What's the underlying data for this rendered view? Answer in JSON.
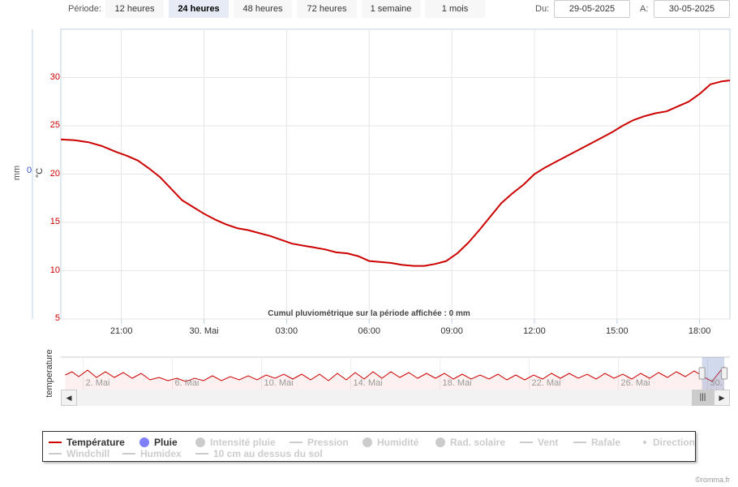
{
  "toolbar": {
    "period_label": "Période:",
    "periods": [
      "12 heures",
      "24 heures",
      "48 heures",
      "72 heures",
      "1 semaine",
      "1 mois"
    ],
    "active_period": 1,
    "from_label": "Du:",
    "from_value": "29-05-2025",
    "to_label": "A:",
    "to_value": "30-05-2025"
  },
  "chart_data": [
    {
      "type": "line",
      "title": "",
      "xlabel": "",
      "ylabel": "°C",
      "y2label": "mm",
      "y2_ticks": [
        "0"
      ],
      "ylim": [
        5,
        35
      ],
      "y_ticks": [
        "5",
        "10",
        "15",
        "20",
        "25",
        "30"
      ],
      "x_ticks": [
        {
          "label": "21:00",
          "h": 3
        },
        {
          "label": "30. Mai",
          "h": 6
        },
        {
          "label": "03:00",
          "h": 9
        },
        {
          "label": "06:00",
          "h": 12
        },
        {
          "label": "09:00",
          "h": 15
        },
        {
          "label": "12:00",
          "h": 18
        },
        {
          "label": "15:00",
          "h": 21
        },
        {
          "label": "18:00",
          "h": 24
        }
      ],
      "x_unit": "hours since 29-05-2025 18:00",
      "xlim": [
        0.8,
        25.1
      ],
      "annotation": "Cumul pluviométrique sur la période affichée : 0 mm",
      "series": [
        {
          "name": "Température",
          "color": "#cc0000",
          "points": [
            [
              0.8,
              23.6
            ],
            [
              1.3,
              23.5
            ],
            [
              1.8,
              23.3
            ],
            [
              2.3,
              22.9
            ],
            [
              2.8,
              22.3
            ],
            [
              3.2,
              21.9
            ],
            [
              3.6,
              21.4
            ],
            [
              4.0,
              20.6
            ],
            [
              4.4,
              19.7
            ],
            [
              4.8,
              18.5
            ],
            [
              5.2,
              17.3
            ],
            [
              5.6,
              16.6
            ],
            [
              6.0,
              15.9
            ],
            [
              6.4,
              15.3
            ],
            [
              6.8,
              14.8
            ],
            [
              7.2,
              14.4
            ],
            [
              7.6,
              14.2
            ],
            [
              8.0,
              13.9
            ],
            [
              8.4,
              13.6
            ],
            [
              8.8,
              13.2
            ],
            [
              9.2,
              12.8
            ],
            [
              9.6,
              12.6
            ],
            [
              10.0,
              12.4
            ],
            [
              10.4,
              12.2
            ],
            [
              10.8,
              11.9
            ],
            [
              11.2,
              11.8
            ],
            [
              11.6,
              11.5
            ],
            [
              12.0,
              11.0
            ],
            [
              12.4,
              10.9
            ],
            [
              12.8,
              10.8
            ],
            [
              13.2,
              10.6
            ],
            [
              13.6,
              10.5
            ],
            [
              14.0,
              10.5
            ],
            [
              14.4,
              10.7
            ],
            [
              14.8,
              11.0
            ],
            [
              15.2,
              11.8
            ],
            [
              15.6,
              12.9
            ],
            [
              16.0,
              14.2
            ],
            [
              16.4,
              15.6
            ],
            [
              16.8,
              17.0
            ],
            [
              17.2,
              18.0
            ],
            [
              17.6,
              18.9
            ],
            [
              18.0,
              20.0
            ],
            [
              18.4,
              20.7
            ],
            [
              18.8,
              21.3
            ],
            [
              19.2,
              21.9
            ],
            [
              19.6,
              22.5
            ],
            [
              20.0,
              23.1
            ],
            [
              20.4,
              23.7
            ],
            [
              20.8,
              24.3
            ],
            [
              21.2,
              25.0
            ],
            [
              21.6,
              25.6
            ],
            [
              22.0,
              26.0
            ],
            [
              22.4,
              26.3
            ],
            [
              22.8,
              26.5
            ],
            [
              23.2,
              27.0
            ],
            [
              23.6,
              27.5
            ],
            [
              24.0,
              28.3
            ],
            [
              24.4,
              29.3
            ],
            [
              24.8,
              29.6
            ],
            [
              25.1,
              29.7
            ]
          ]
        }
      ]
    },
    {
      "type": "line",
      "title": "",
      "ylabel": "temperature",
      "x_ticks": [
        {
          "label": "2. Mai",
          "d": 2
        },
        {
          "label": "6. Mai",
          "d": 6
        },
        {
          "label": "10. Mai",
          "d": 10
        },
        {
          "label": "14. Mai",
          "d": 14
        },
        {
          "label": "18. Mai",
          "d": 18
        },
        {
          "label": "22. Mai",
          "d": 22
        },
        {
          "label": "26. Mai",
          "d": 26
        },
        {
          "label": "30. Mai",
          "d": 30
        }
      ],
      "x_unit": "day of May 2025",
      "xlim": [
        1,
        31
      ],
      "ylim": [
        0,
        40
      ],
      "selected_range": [
        29.75,
        30.75
      ],
      "series": [
        {
          "name": "Température",
          "color": "#cc0000",
          "points": [
            [
              1.2,
              18
            ],
            [
              1.5,
              22
            ],
            [
              1.8,
              16
            ],
            [
              2.2,
              24
            ],
            [
              2.6,
              15
            ],
            [
              3.0,
              22
            ],
            [
              3.4,
              15
            ],
            [
              3.8,
              21
            ],
            [
              4.2,
              14
            ],
            [
              4.6,
              20
            ],
            [
              5.0,
              12
            ],
            [
              5.4,
              15
            ],
            [
              5.8,
              11
            ],
            [
              6.2,
              14
            ],
            [
              6.6,
              10
            ],
            [
              7.0,
              14
            ],
            [
              7.4,
              11
            ],
            [
              7.8,
              17
            ],
            [
              8.2,
              11
            ],
            [
              8.6,
              16
            ],
            [
              9.0,
              12
            ],
            [
              9.4,
              17
            ],
            [
              9.8,
              12
            ],
            [
              10.2,
              18
            ],
            [
              10.6,
              14
            ],
            [
              11.0,
              19
            ],
            [
              11.4,
              13
            ],
            [
              11.8,
              19
            ],
            [
              12.2,
              12
            ],
            [
              12.6,
              19
            ],
            [
              13.0,
              11
            ],
            [
              13.4,
              20
            ],
            [
              13.8,
              12
            ],
            [
              14.2,
              21
            ],
            [
              14.6,
              13
            ],
            [
              15.0,
              22
            ],
            [
              15.4,
              14
            ],
            [
              15.8,
              22
            ],
            [
              16.2,
              15
            ],
            [
              16.6,
              21
            ],
            [
              17.0,
              14
            ],
            [
              17.4,
              20
            ],
            [
              17.8,
              14
            ],
            [
              18.2,
              20
            ],
            [
              18.6,
              13
            ],
            [
              19.0,
              19
            ],
            [
              19.4,
              13
            ],
            [
              19.8,
              18
            ],
            [
              20.2,
              13
            ],
            [
              20.6,
              19
            ],
            [
              21.0,
              12
            ],
            [
              21.4,
              18
            ],
            [
              21.8,
              12
            ],
            [
              22.2,
              18
            ],
            [
              22.6,
              13
            ],
            [
              23.0,
              20
            ],
            [
              23.4,
              14
            ],
            [
              23.8,
              20
            ],
            [
              24.2,
              14
            ],
            [
              24.6,
              19
            ],
            [
              25.0,
              13
            ],
            [
              25.4,
              20
            ],
            [
              25.8,
              14
            ],
            [
              26.2,
              19
            ],
            [
              26.6,
              13
            ],
            [
              27.0,
              20
            ],
            [
              27.4,
              14
            ],
            [
              27.8,
              21
            ],
            [
              28.2,
              15
            ],
            [
              28.6,
              22
            ],
            [
              29.0,
              16
            ],
            [
              29.4,
              23
            ],
            [
              29.8,
              16
            ],
            [
              30.2,
              10
            ],
            [
              30.6,
              24
            ],
            [
              30.75,
              28
            ]
          ]
        }
      ]
    }
  ],
  "legend": [
    {
      "label": "Température",
      "symbol": "line",
      "color": "#cc0000",
      "hidden": false
    },
    {
      "label": "Pluie",
      "symbol": "dot",
      "color": "#8080ff",
      "hidden": false
    },
    {
      "label": "Intensité pluie",
      "symbol": "dot",
      "color": "#cccccc",
      "hidden": true
    },
    {
      "label": "Pression",
      "symbol": "line",
      "color": "#cccccc",
      "hidden": true
    },
    {
      "label": "Humidité",
      "symbol": "dot",
      "color": "#cccccc",
      "hidden": true
    },
    {
      "label": "Rad. solaire",
      "symbol": "dot",
      "color": "#cccccc",
      "hidden": true
    },
    {
      "label": "Vent",
      "symbol": "line",
      "color": "#cccccc",
      "hidden": true
    },
    {
      "label": "Rafale",
      "symbol": "line",
      "color": "#cccccc",
      "hidden": true
    },
    {
      "label": "Direction",
      "symbol": "small-dot",
      "color": "#cccccc",
      "hidden": true
    },
    {
      "label": "Windchill",
      "symbol": "line",
      "color": "#cccccc",
      "hidden": true
    },
    {
      "label": "Humidex",
      "symbol": "line",
      "color": "#cccccc",
      "hidden": true
    },
    {
      "label": "10 cm au dessus du sol",
      "symbol": "line",
      "color": "#cccccc",
      "hidden": true
    }
  ],
  "credits": "©romma.fr"
}
